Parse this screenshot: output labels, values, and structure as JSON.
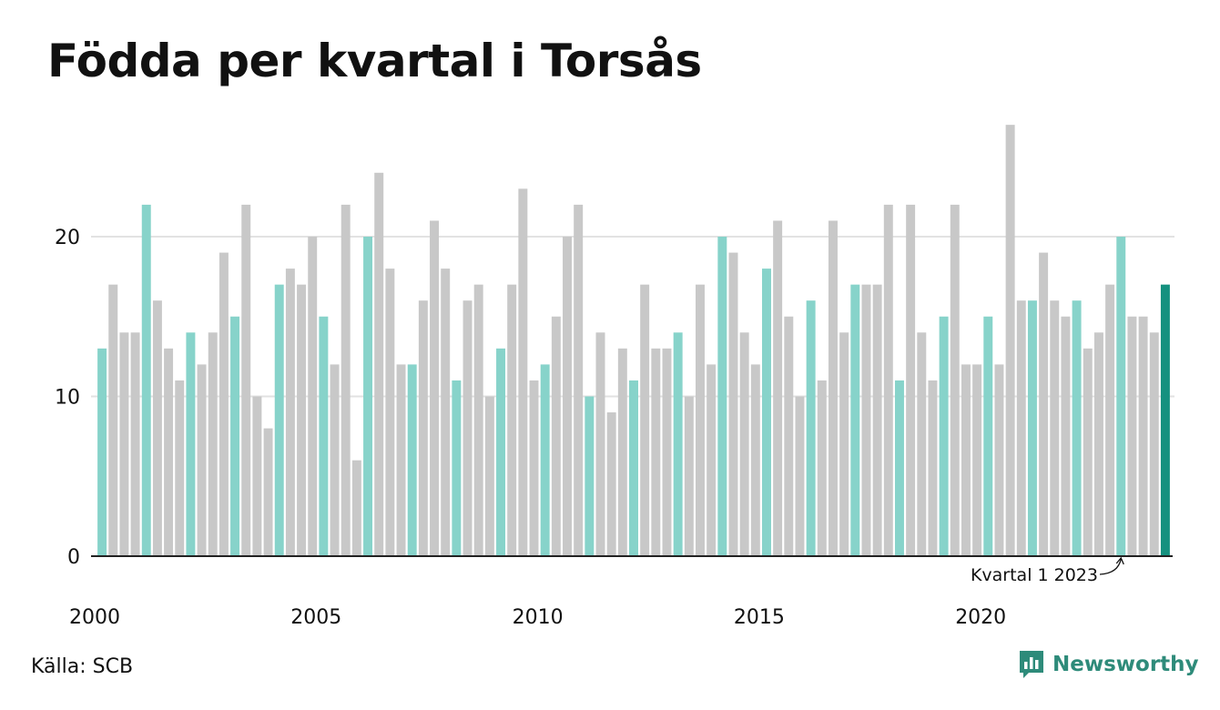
{
  "title": "Födda per kvartal i Torsås",
  "source": "Källa: SCB",
  "brand": {
    "name": "Newsworthy",
    "icon": "newsworthy-logo-icon",
    "color": "#2e8b7a"
  },
  "colors": {
    "default": "#c8c8c8",
    "q1": "#87d3ca",
    "latest": "#15917f",
    "grid": "#e2e2e2",
    "axis": "#222222"
  },
  "chart_data": {
    "type": "bar",
    "x_start": "Kvartal 1 2000",
    "x_interval": "quarter",
    "x_ticks": [
      "2000",
      "2005",
      "2010",
      "2015",
      "2020"
    ],
    "y_ticks": [
      "0",
      "10",
      "20"
    ],
    "ylim": [
      0,
      28
    ],
    "grid": true,
    "annotation": {
      "text": "Kvartal 1 2023",
      "target": "Kvartal 1 2023"
    },
    "values": [
      13,
      17,
      14,
      14,
      22,
      16,
      13,
      11,
      14,
      12,
      14,
      19,
      15,
      22,
      10,
      8,
      17,
      18,
      17,
      20,
      15,
      12,
      22,
      6,
      20,
      24,
      18,
      12,
      12,
      16,
      21,
      18,
      11,
      16,
      17,
      10,
      13,
      17,
      23,
      11,
      12,
      15,
      20,
      22,
      10,
      14,
      9,
      13,
      11,
      17,
      13,
      13,
      14,
      10,
      17,
      12,
      20,
      19,
      14,
      12,
      18,
      21,
      15,
      10,
      16,
      11,
      21,
      14,
      17,
      17,
      17,
      22,
      11,
      22,
      14,
      11,
      15,
      22,
      12,
      12,
      15,
      12,
      27,
      16,
      16,
      19,
      16,
      15,
      16,
      13,
      14,
      17,
      20,
      15,
      15,
      14,
      17
    ],
    "q1_highlight": true,
    "latest_highlight": true
  }
}
